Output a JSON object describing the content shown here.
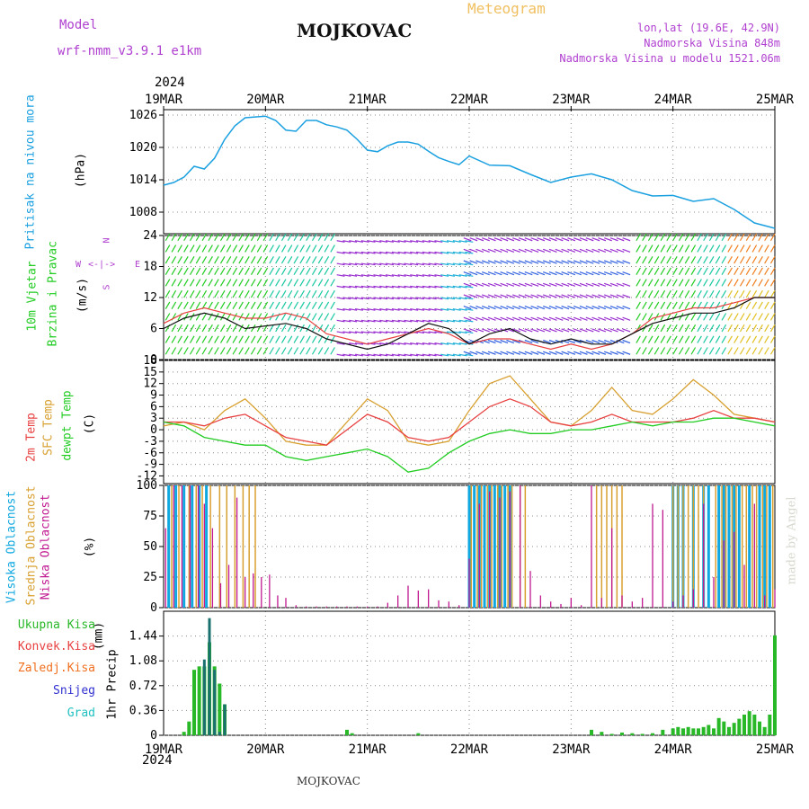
{
  "header": {
    "model_label": "Model",
    "model_name": "wrf-nmm_v3.9.1 e1km",
    "location": "MOJKOVAC",
    "meteogram": "Meteogram",
    "lonlat": "lon,lat (19.6E, 42.9N)",
    "elevation": "Nadmorska Visina 848m",
    "model_elevation": "Nadmorska Visina u modelu 1521.06m",
    "year_top": "2024",
    "year_bottom": "2024",
    "footer_location": "MOJKOVAC",
    "credit": "made by Angel"
  },
  "colors": {
    "pressure": "#1aa0e0",
    "temp2m": "#e84040",
    "sfc": "#d8a030",
    "dewpt": "#22cc22",
    "high_cloud": "#10a8e0",
    "mid_cloud": "#d8a030",
    "low_cloud": "#c01890",
    "precip": "#28b828",
    "conv": "#e84040",
    "freezing": "#f07020",
    "snow": "#3030d0",
    "hail": "#20c0c0",
    "wind_legend": "#b040d0"
  },
  "chart_data": [
    {
      "type": "line",
      "panel": "pressure",
      "ylabel_main": "Pritisak na nivou mora",
      "ylabel_unit": "(hPa)",
      "x_categories": [
        "19MAR",
        "20MAR",
        "21MAR",
        "22MAR",
        "23MAR",
        "24MAR",
        "25MAR"
      ],
      "ylim": [
        1004,
        1027
      ],
      "yticks": [
        1008,
        1014,
        1020,
        1026
      ],
      "grid": true,
      "series": [
        {
          "x": [
            0,
            0.1,
            0.2,
            0.3,
            0.4,
            0.5,
            0.6,
            0.7,
            0.8,
            1.0,
            1.1,
            1.2,
            1.3,
            1.4,
            1.5,
            1.6,
            1.7,
            1.8,
            1.9,
            2.0,
            2.1,
            2.2,
            2.3,
            2.4,
            2.5,
            2.6,
            2.7,
            2.8,
            2.9,
            3.0,
            3.2,
            3.4,
            3.6,
            3.8,
            4.0,
            4.2,
            4.4,
            4.6,
            4.8,
            5.0,
            5.2,
            5.4,
            5.6,
            5.8,
            6.0
          ],
          "y": [
            1013,
            1013.5,
            1014.5,
            1016.5,
            1016,
            1018,
            1021.5,
            1024,
            1025.5,
            1025.8,
            1025,
            1023.2,
            1023,
            1025,
            1025,
            1024.2,
            1023.8,
            1023.2,
            1021.5,
            1019.5,
            1019.2,
            1020.3,
            1021,
            1021,
            1020.6,
            1019.3,
            1018.1,
            1017.4,
            1016.8,
            1018.4,
            1016.7,
            1016.6,
            1015,
            1013.5,
            1014.5,
            1015.1,
            1014,
            1012,
            1011,
            1011.1,
            1010,
            1010.5,
            1008.5,
            1006,
            1005
          ]
        }
      ]
    },
    {
      "type": "scatter",
      "panel": "wind",
      "ylabel_main": "10m Vjetar",
      "ylabel_sub": "Brzina i Pravac",
      "ylabel_unit": "(m/s)",
      "legend_n": "N",
      "legend_s": "S",
      "legend_w": "W",
      "legend_e": "E",
      "ylim": [
        0,
        24
      ],
      "yticks": [
        0,
        6,
        12,
        18,
        24
      ],
      "grid": true,
      "series": [
        {
          "name": "speed_black",
          "x": [
            0,
            0.2,
            0.4,
            0.6,
            0.8,
            1.0,
            1.2,
            1.4,
            1.6,
            1.8,
            2.0,
            2.2,
            2.4,
            2.6,
            2.8,
            3.0,
            3.2,
            3.4,
            3.6,
            3.8,
            4.0,
            4.2,
            4.4,
            4.6,
            4.8,
            5.0,
            5.2,
            5.4,
            5.6,
            5.8,
            6.0
          ],
          "y": [
            6,
            8,
            9,
            8,
            6,
            6.5,
            7,
            6,
            4,
            3,
            2,
            3,
            5,
            7,
            6,
            3,
            5,
            6,
            4,
            3,
            4,
            3,
            3,
            5,
            7,
            8,
            9,
            9,
            10,
            12,
            12
          ]
        },
        {
          "name": "gust_red",
          "x": [
            0,
            0.2,
            0.4,
            0.6,
            0.8,
            1.0,
            1.2,
            1.4,
            1.6,
            1.8,
            2.0,
            2.2,
            2.4,
            2.6,
            2.8,
            3.0,
            3.2,
            3.4,
            3.6,
            3.8,
            4.0,
            4.2,
            4.4,
            4.6,
            4.8,
            5.0,
            5.2,
            5.4,
            5.6,
            5.8,
            6.0
          ],
          "y": [
            7,
            9,
            10,
            9,
            8,
            8,
            9,
            8,
            5,
            4,
            3,
            4,
            5,
            6,
            5,
            3,
            4,
            4,
            3,
            2,
            3,
            2,
            3,
            5,
            8,
            9,
            10,
            10,
            11,
            12,
            12
          ]
        }
      ]
    },
    {
      "type": "line",
      "panel": "temperature",
      "ylabel_main": "2m Temp",
      "ylabel_sfc": "SFC Temp",
      "ylabel_dew": "dewpt Temp",
      "ylabel_unit": "(C)",
      "ylim": [
        -14,
        18
      ],
      "yticks": [
        -12,
        -9,
        -6,
        -3,
        0,
        3,
        6,
        9,
        12,
        15,
        18
      ],
      "grid": true,
      "series": [
        {
          "name": "t2m",
          "x": [
            0,
            0.2,
            0.4,
            0.6,
            0.8,
            1.0,
            1.2,
            1.4,
            1.6,
            1.8,
            2.0,
            2.2,
            2.4,
            2.6,
            2.8,
            3.0,
            3.2,
            3.4,
            3.6,
            3.8,
            4.0,
            4.2,
            4.4,
            4.6,
            4.8,
            5.0,
            5.2,
            5.4,
            5.6,
            5.8,
            6.0
          ],
          "y": [
            2,
            2,
            1,
            3,
            4,
            1,
            -2,
            -3,
            -4,
            0,
            4,
            2,
            -2,
            -3,
            -2,
            2,
            6,
            8,
            6,
            2,
            1,
            2,
            4,
            2,
            2,
            2,
            3,
            5,
            3,
            3,
            2
          ]
        },
        {
          "name": "sfc",
          "x": [
            0,
            0.2,
            0.4,
            0.6,
            0.8,
            1.0,
            1.2,
            1.4,
            1.6,
            1.8,
            2.0,
            2.2,
            2.4,
            2.6,
            2.8,
            3.0,
            3.2,
            3.4,
            3.6,
            3.8,
            4.0,
            4.2,
            4.4,
            4.6,
            4.8,
            5.0,
            5.2,
            5.4,
            5.6,
            5.8,
            6.0
          ],
          "y": [
            1,
            2,
            0,
            5,
            8,
            3,
            -3,
            -4,
            -4,
            2,
            8,
            5,
            -3,
            -4,
            -3,
            5,
            12,
            14,
            8,
            2,
            1,
            5,
            11,
            5,
            4,
            8,
            13,
            9,
            4,
            3,
            2
          ]
        },
        {
          "name": "dewpt",
          "x": [
            0,
            0.2,
            0.4,
            0.6,
            0.8,
            1.0,
            1.2,
            1.4,
            1.6,
            1.8,
            2.0,
            2.2,
            2.4,
            2.6,
            2.8,
            3.0,
            3.2,
            3.4,
            3.6,
            3.8,
            4.0,
            4.2,
            4.4,
            4.6,
            4.8,
            5.0,
            5.2,
            5.4,
            5.6,
            5.8,
            6.0
          ],
          "y": [
            2,
            1,
            -2,
            -3,
            -4,
            -4,
            -7,
            -8,
            -7,
            -6,
            -5,
            -7,
            -11,
            -10,
            -6,
            -3,
            -1,
            0,
            -1,
            -1,
            0,
            0,
            1,
            2,
            1,
            2,
            2,
            3,
            3,
            2,
            1
          ]
        }
      ]
    },
    {
      "type": "bar",
      "panel": "clouds",
      "ylabel_high": "Visoka Oblacnost",
      "ylabel_mid": "Srednja Oblacnost",
      "ylabel_low": "Niska Oblacnost",
      "ylabel_unit": "(%)",
      "ylim": [
        0,
        100
      ],
      "yticks": [
        0,
        25,
        50,
        75,
        100
      ],
      "grid": true,
      "series": [
        {
          "name": "high",
          "x": [
            0.05,
            0.12,
            0.2,
            0.28,
            0.35,
            0.42,
            3.0,
            3.05,
            3.1,
            3.15,
            3.2,
            3.25,
            3.3,
            3.35,
            3.4,
            5.0,
            5.05,
            5.1,
            5.2,
            5.3,
            5.35,
            5.45,
            5.5,
            5.55,
            5.6,
            5.65,
            5.75,
            5.85,
            5.9,
            5.95
          ],
          "y": [
            100,
            100,
            100,
            100,
            100,
            100,
            100,
            100,
            100,
            100,
            100,
            100,
            100,
            100,
            100,
            100,
            100,
            100,
            100,
            100,
            100,
            100,
            100,
            100,
            100,
            100,
            100,
            100,
            100,
            100
          ]
        },
        {
          "name": "mid",
          "x": [
            0.08,
            0.15,
            0.25,
            0.32,
            0.38,
            0.46,
            0.55,
            0.62,
            0.7,
            0.78,
            0.84,
            0.9,
            3.02,
            3.08,
            3.12,
            3.18,
            3.22,
            3.28,
            3.32,
            3.38,
            3.42,
            3.5,
            3.55,
            4.25,
            4.3,
            4.35,
            4.4,
            4.45,
            4.5,
            5.0,
            5.05,
            5.1,
            5.15,
            5.2,
            5.25,
            5.3,
            5.42,
            5.48,
            5.52,
            5.58,
            5.62,
            5.68,
            5.72,
            5.78,
            5.82,
            5.88,
            5.92,
            5.98
          ],
          "y": [
            100,
            100,
            100,
            100,
            100,
            100,
            100,
            100,
            100,
            100,
            100,
            100,
            100,
            100,
            100,
            100,
            100,
            100,
            100,
            100,
            100,
            100,
            100,
            100,
            100,
            100,
            100,
            100,
            100,
            100,
            100,
            100,
            100,
            100,
            100,
            100,
            100,
            100,
            100,
            100,
            100,
            100,
            100,
            100,
            100,
            100,
            100,
            100
          ]
        },
        {
          "name": "low",
          "x": [
            0.02,
            0.1,
            0.18,
            0.26,
            0.34,
            0.4,
            0.48,
            0.56,
            0.64,
            0.72,
            0.8,
            0.88,
            0.96,
            1.04,
            1.12,
            1.2,
            1.3,
            1.4,
            1.5,
            1.6,
            1.7,
            1.8,
            1.9,
            2.0,
            2.1,
            2.2,
            2.3,
            2.4,
            2.5,
            2.6,
            2.7,
            2.8,
            2.9,
            3.0,
            3.1,
            3.2,
            3.3,
            3.4,
            3.5,
            3.6,
            3.7,
            3.8,
            3.9,
            4.0,
            4.1,
            4.2,
            4.3,
            4.4,
            4.5,
            4.6,
            4.7,
            4.8,
            4.9,
            5.0,
            5.1,
            5.2,
            5.3,
            5.4,
            5.5,
            5.6,
            5.7,
            5.8,
            5.9,
            6.0
          ],
          "y": [
            65,
            100,
            100,
            100,
            100,
            85,
            65,
            20,
            35,
            90,
            25,
            28,
            25,
            27,
            10,
            8,
            2,
            1,
            1,
            1,
            1,
            1,
            1,
            1,
            1,
            4,
            10,
            18,
            14,
            15,
            6,
            5,
            2,
            40,
            85,
            95,
            90,
            95,
            100,
            30,
            10,
            5,
            3,
            8,
            2,
            100,
            8,
            65,
            10,
            5,
            8,
            85,
            80,
            5,
            10,
            15,
            85,
            25,
            55,
            62,
            35,
            85,
            10,
            15
          ]
        }
      ]
    },
    {
      "type": "bar",
      "panel": "precip",
      "ylabel_main": "1hr Precip",
      "ylabel_unit": "(mm)",
      "legend_labels": [
        "Ukupna Kisa",
        "Konvek.Kisa",
        "Zaledj.Kisa",
        "Snijeg",
        "Grad"
      ],
      "ylim": [
        0,
        1.8
      ],
      "yticks": [
        0,
        0.36,
        0.72,
        1.08,
        1.44
      ],
      "ytick_labels": [
        "0",
        "0.36",
        "0.72",
        "1.08",
        "1.44"
      ],
      "grid": true,
      "series": [
        {
          "name": "total",
          "x": [
            0.2,
            0.25,
            0.3,
            0.35,
            0.4,
            0.45,
            0.5,
            0.55,
            0.6,
            0.65,
            1.8,
            1.85,
            2.5,
            4.2,
            4.3,
            4.4,
            4.5,
            4.6,
            4.7,
            4.8,
            4.9,
            5.0,
            5.05,
            5.1,
            5.15,
            5.2,
            5.25,
            5.3,
            5.35,
            5.4,
            5.45,
            5.5,
            5.55,
            5.6,
            5.65,
            5.7,
            5.75,
            5.8,
            5.85,
            5.9,
            5.95,
            6.0
          ],
          "y": [
            0.05,
            0.2,
            0.95,
            1.0,
            1.0,
            1.35,
            1.0,
            0.75,
            0.45,
            0.0,
            0.08,
            0.03,
            0.03,
            0.08,
            0.05,
            0.02,
            0.04,
            0.03,
            0.02,
            0.03,
            0.08,
            0.1,
            0.12,
            0.1,
            0.12,
            0.1,
            0.1,
            0.12,
            0.15,
            0.1,
            0.25,
            0.2,
            0.12,
            0.18,
            0.24,
            0.3,
            0.35,
            0.3,
            0.2,
            0.12,
            0.3,
            1.45
          ]
        },
        {
          "name": "snow",
          "x": [
            0.4,
            0.45,
            0.5,
            0.55,
            0.6
          ],
          "y": [
            1.1,
            1.7,
            0.95,
            0.05,
            0.45
          ]
        }
      ]
    }
  ]
}
